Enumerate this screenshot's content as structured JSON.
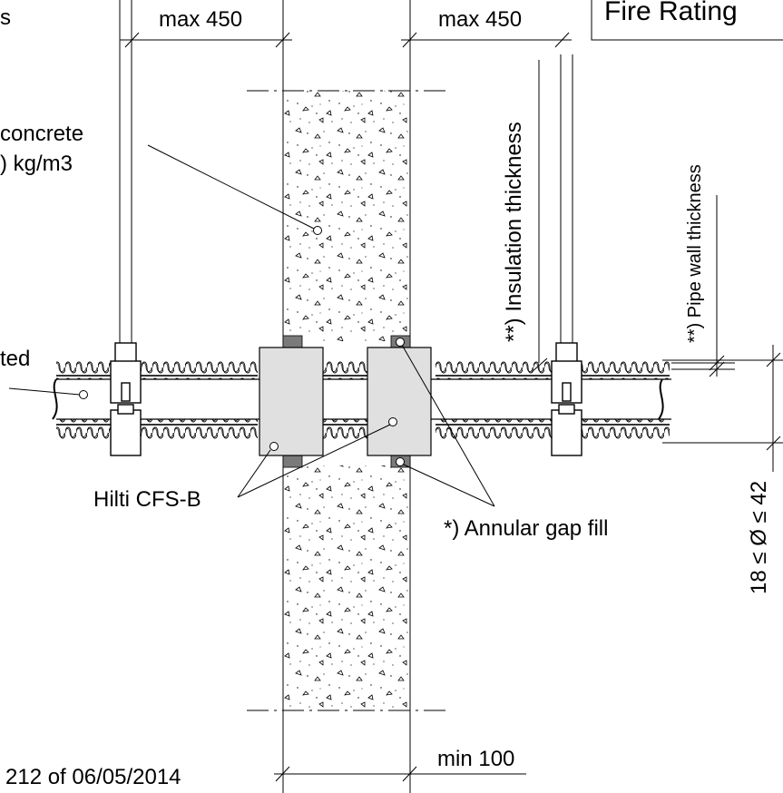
{
  "title_box": {
    "text": "Fire Rating"
  },
  "dimensions": {
    "hanger_left": "max 450",
    "hanger_right": "max 450",
    "wall_min": "min 100",
    "diameter": "18 ≤ Ø ≤ 42"
  },
  "labels": {
    "top_left_fragment": "s",
    "concrete_line1": "concrete",
    "concrete_line2": ") kg/m3",
    "pipe_fragment": "ted",
    "hilti_product": "Hilti CFS-B",
    "annular_gap": "*) Annular gap fill",
    "insulation": "**) Insulation thickness",
    "pipe_wall": "**) Pipe wall thickness"
  },
  "footer": {
    "approval_fragment": "212 of 06/05/2014"
  }
}
